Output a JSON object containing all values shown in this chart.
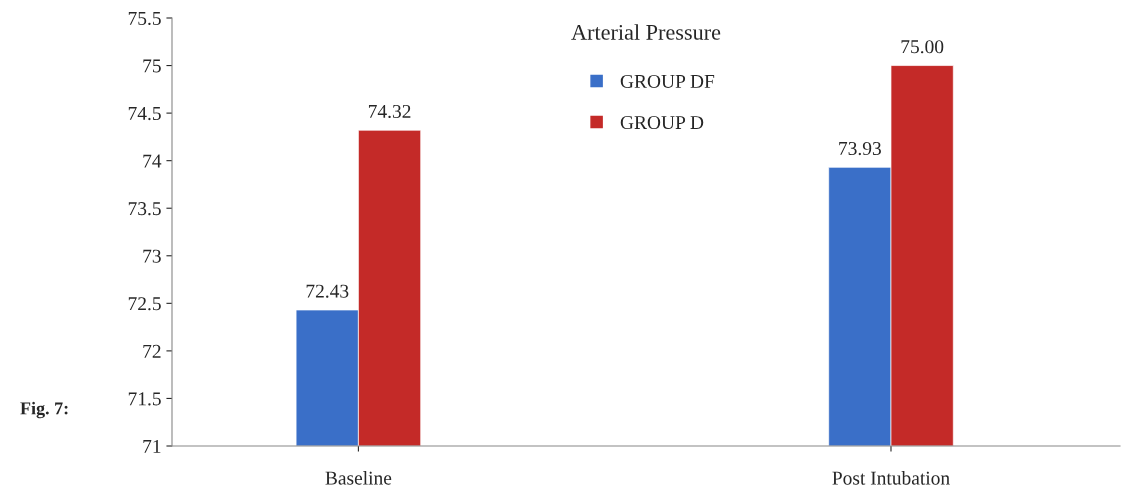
{
  "chart_data": {
    "type": "bar",
    "title": "Arterial Pressure",
    "categories": [
      "Baseline",
      "Post Intubation"
    ],
    "series": [
      {
        "name": "GROUP DF",
        "color": "#3a6fc8",
        "values": [
          72.43,
          73.93
        ],
        "value_labels": [
          "72.43",
          "73.93"
        ]
      },
      {
        "name": "GROUP D",
        "color": "#c42a28",
        "values": [
          74.32,
          75.0
        ],
        "value_labels": [
          "74.32",
          "75.00"
        ]
      }
    ],
    "ylim": [
      71,
      75.5
    ],
    "yticks": [
      71,
      71.5,
      72,
      72.5,
      73,
      73.5,
      74,
      74.5,
      75,
      75.5
    ],
    "grid": false,
    "legend": "top",
    "annotations": [
      "Fig. 7:"
    ]
  }
}
